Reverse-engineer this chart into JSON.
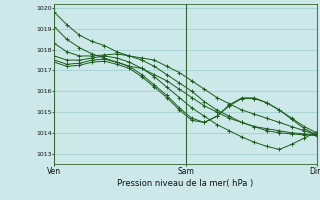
{
  "title": "Pression niveau de la mer( hPa )",
  "bg_color": "#cce8e8",
  "grid_color": "#99cccc",
  "line_color": "#1a5c1a",
  "marker_color": "#1a5c1a",
  "ylim": [
    1012.5,
    1020.2
  ],
  "yticks": [
    1013,
    1014,
    1015,
    1016,
    1017,
    1018,
    1019,
    1020
  ],
  "xtick_labels": [
    "Ven",
    "Sam",
    "Dim"
  ],
  "xtick_positions": [
    0.0,
    0.5,
    1.0
  ],
  "vline_positions": [
    0.0,
    0.5,
    1.0
  ],
  "series": [
    [
      1019.8,
      1019.2,
      1018.7,
      1018.4,
      1018.2,
      1017.9,
      1017.7,
      1017.6,
      1017.5,
      1017.2,
      1016.9,
      1016.5,
      1016.1,
      1015.7,
      1015.4,
      1015.1,
      1014.9,
      1014.7,
      1014.5,
      1014.3,
      1014.1,
      1013.9
    ],
    [
      1019.1,
      1018.5,
      1018.1,
      1017.8,
      1017.6,
      1017.4,
      1017.2,
      1017.1,
      1016.8,
      1016.5,
      1016.1,
      1015.7,
      1015.3,
      1015.0,
      1014.7,
      1014.5,
      1014.3,
      1014.2,
      1014.1,
      1014.0,
      1013.95,
      1013.9
    ],
    [
      1018.3,
      1017.9,
      1017.7,
      1017.7,
      1017.75,
      1017.8,
      1017.7,
      1017.5,
      1017.2,
      1016.8,
      1016.4,
      1016.0,
      1015.5,
      1015.1,
      1014.8,
      1014.5,
      1014.3,
      1014.1,
      1014.0,
      1013.95,
      1013.9,
      1013.87
    ],
    [
      1017.7,
      1017.5,
      1017.5,
      1017.6,
      1017.7,
      1017.6,
      1017.4,
      1017.1,
      1016.7,
      1016.2,
      1015.7,
      1015.2,
      1014.8,
      1014.4,
      1014.1,
      1013.8,
      1013.55,
      1013.35,
      1013.2,
      1013.45,
      1013.75,
      1014.05
    ],
    [
      1017.5,
      1017.3,
      1017.35,
      1017.5,
      1017.55,
      1017.4,
      1017.2,
      1016.8,
      1016.3,
      1015.8,
      1015.2,
      1014.7,
      1014.5,
      1014.8,
      1015.3,
      1015.65,
      1015.65,
      1015.45,
      1015.1,
      1014.7,
      1014.3,
      1014.0
    ],
    [
      1017.4,
      1017.2,
      1017.25,
      1017.4,
      1017.45,
      1017.3,
      1017.1,
      1016.7,
      1016.2,
      1015.7,
      1015.1,
      1014.6,
      1014.5,
      1014.8,
      1015.35,
      1015.68,
      1015.68,
      1015.45,
      1015.1,
      1014.65,
      1014.2,
      1013.9
    ]
  ]
}
